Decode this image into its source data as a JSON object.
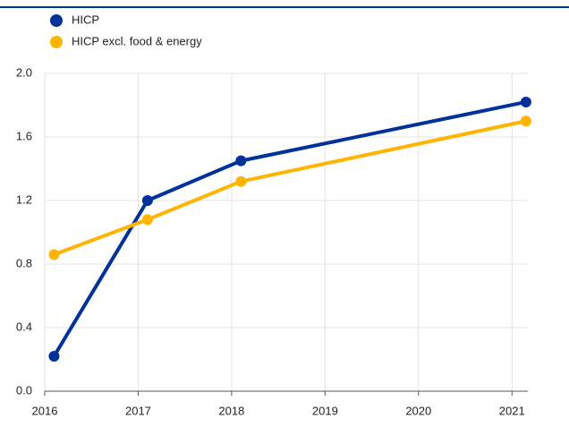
{
  "chart_data": {
    "type": "line",
    "x": [
      2016.1,
      2017.1,
      2018.1,
      2021.15
    ],
    "series": [
      {
        "name": "HICP",
        "color": "#003299",
        "values": [
          0.22,
          1.2,
          1.45,
          1.82
        ]
      },
      {
        "name": "HICP excl. food & energy",
        "color": "#ffb400",
        "values": [
          0.86,
          1.08,
          1.32,
          1.7
        ]
      }
    ],
    "xlim": [
      2016,
      2021.17
    ],
    "xticks": [
      2016,
      2017,
      2018,
      2019,
      2020,
      2021
    ],
    "ylim": [
      0,
      2.0
    ],
    "yticks": [
      {
        "value": 0,
        "label": "0.0"
      },
      {
        "value": 0.4,
        "label": "0.4"
      },
      {
        "value": 0.8,
        "label": "0.8"
      },
      {
        "value": 1.2,
        "label": "1.2"
      },
      {
        "value": 1.6,
        "label": "1.6"
      },
      {
        "value": 2.0,
        "label": "2.0"
      }
    ],
    "grid": true
  }
}
